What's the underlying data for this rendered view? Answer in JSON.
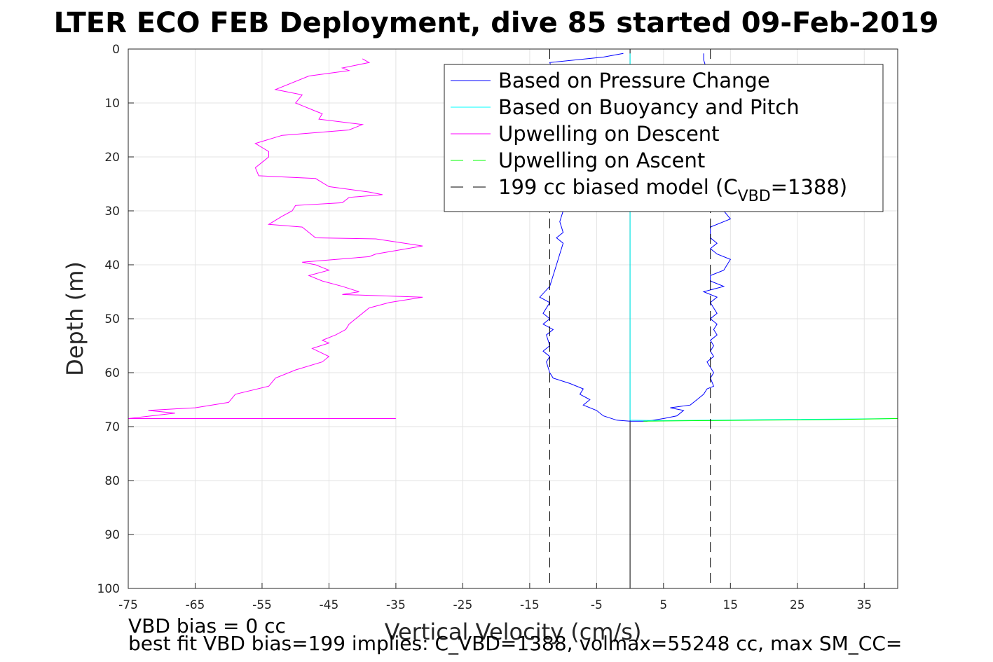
{
  "chart_data": {
    "type": "line",
    "title": "LTER ECO FEB Deployment, dive 85 started 09-Feb-2019",
    "xlabel": "Vertical Velocity (cm/s)",
    "ylabel": "Depth (m)",
    "xlim": [
      -75,
      40
    ],
    "ylim": [
      0,
      100
    ],
    "y_reversed": true,
    "grid": true,
    "x_ticks": [
      -75,
      -65,
      -55,
      -45,
      -35,
      -25,
      -15,
      -5,
      5,
      15,
      25,
      35
    ],
    "y_ticks": [
      0,
      10,
      20,
      30,
      40,
      50,
      60,
      70,
      80,
      90,
      100
    ],
    "legend_position": "top-right",
    "legend": [
      {
        "label": "Based on Pressure Change",
        "color": "#0000ff",
        "dash": "solid"
      },
      {
        "label": "Based on Buoyancy and Pitch",
        "color": "#00ffff",
        "dash": "solid"
      },
      {
        "label": "Upwelling on Descent",
        "color": "#ff00ff",
        "dash": "solid"
      },
      {
        "label": "Upwelling on Ascent",
        "color": "#00ff00",
        "dash": "dashed"
      },
      {
        "label": "199 cc biased model (C",
        "sub": "VBD",
        "tail": "=1388)",
        "color": "#000000",
        "dash": "dashed"
      }
    ],
    "series": [
      {
        "name": "Based on Pressure Change",
        "color": "#0000ff",
        "points": [
          [
            -1,
            0.8
          ],
          [
            -4,
            1.5
          ],
          [
            -12,
            2.5
          ],
          [
            -11.5,
            4
          ],
          [
            -11,
            6
          ],
          [
            -10.5,
            8
          ],
          [
            -11,
            10
          ],
          [
            -10,
            12
          ],
          [
            -10.5,
            14
          ],
          [
            -10,
            16
          ],
          [
            -10.5,
            18
          ],
          [
            -10,
            20
          ],
          [
            -10.5,
            22
          ],
          [
            -10,
            24
          ],
          [
            -10.5,
            26
          ],
          [
            -10,
            28
          ],
          [
            -10,
            30
          ],
          [
            -10.5,
            32
          ],
          [
            -10,
            34
          ],
          [
            -11,
            35
          ],
          [
            -10,
            36
          ],
          [
            -10.5,
            38
          ],
          [
            -11,
            40
          ],
          [
            -11.5,
            42
          ],
          [
            -12,
            44
          ],
          [
            -13.5,
            46
          ],
          [
            -12,
            47
          ],
          [
            -13,
            49
          ],
          [
            -12,
            50
          ],
          [
            -13,
            51
          ],
          [
            -11.5,
            52
          ],
          [
            -12.5,
            53
          ],
          [
            -12,
            55
          ],
          [
            -13,
            56
          ],
          [
            -12,
            57
          ],
          [
            -12.5,
            58
          ],
          [
            -12,
            60
          ],
          [
            -11.5,
            61
          ],
          [
            -9,
            62
          ],
          [
            -7,
            63
          ],
          [
            -7.5,
            64
          ],
          [
            -6,
            65
          ],
          [
            -7,
            66
          ],
          [
            -5,
            67
          ],
          [
            -4,
            68
          ],
          [
            -2,
            68.8
          ],
          [
            0,
            69
          ],
          [
            1,
            69
          ],
          [
            2.5,
            69
          ],
          [
            5,
            68.5
          ],
          [
            7,
            68
          ],
          [
            8,
            67
          ],
          [
            6,
            66.5
          ],
          [
            9,
            66
          ],
          [
            10,
            65
          ],
          [
            11,
            64
          ],
          [
            11.5,
            63
          ],
          [
            12.5,
            62.5
          ],
          [
            12,
            61
          ],
          [
            12.5,
            60
          ],
          [
            11.5,
            58
          ],
          [
            12.5,
            57
          ],
          [
            12,
            56
          ],
          [
            12.5,
            55
          ],
          [
            12,
            54
          ],
          [
            13,
            53
          ],
          [
            12.5,
            52
          ],
          [
            13,
            51
          ],
          [
            12,
            50
          ],
          [
            13,
            49
          ],
          [
            12.5,
            48
          ],
          [
            12,
            47
          ],
          [
            13,
            46
          ],
          [
            11,
            45
          ],
          [
            14,
            44
          ],
          [
            12,
            43
          ],
          [
            12,
            42
          ],
          [
            14,
            41
          ],
          [
            15,
            39
          ],
          [
            13,
            38
          ],
          [
            12,
            37
          ],
          [
            13,
            36
          ],
          [
            12,
            35
          ],
          [
            12,
            34
          ],
          [
            12,
            33
          ],
          [
            15,
            31.5
          ],
          [
            14,
            30
          ],
          [
            13,
            28
          ],
          [
            13.5,
            26
          ],
          [
            12.5,
            24
          ],
          [
            13,
            22
          ],
          [
            12.5,
            20
          ],
          [
            13,
            18
          ],
          [
            12,
            16
          ],
          [
            12.5,
            14
          ],
          [
            12,
            12
          ],
          [
            12.5,
            10
          ],
          [
            12,
            8
          ],
          [
            12,
            6
          ],
          [
            11.5,
            4
          ],
          [
            11,
            2
          ],
          [
            11,
            0.8
          ]
        ]
      },
      {
        "name": "Based on Buoyancy and Pitch",
        "color": "#00ffff",
        "points": [
          [
            0,
            0.8
          ],
          [
            0,
            68.8
          ],
          [
            5,
            68.9
          ],
          [
            20,
            68.7
          ],
          [
            40,
            68.5
          ]
        ]
      },
      {
        "name": "Upwelling on Descent",
        "color": "#ff00ff",
        "points": [
          [
            -40,
            1.8
          ],
          [
            -39,
            2.5
          ],
          [
            -43,
            3.5
          ],
          [
            -42,
            4
          ],
          [
            -48,
            5
          ],
          [
            -53,
            7.5
          ],
          [
            -49,
            8.5
          ],
          [
            -50,
            10
          ],
          [
            -49,
            10.5
          ],
          [
            -47,
            11.5
          ],
          [
            -46,
            12
          ],
          [
            -46.5,
            13
          ],
          [
            -40,
            14
          ],
          [
            -42,
            15
          ],
          [
            -52,
            16
          ],
          [
            -56,
            17.5
          ],
          [
            -54,
            19
          ],
          [
            -54,
            20
          ],
          [
            -55,
            21
          ],
          [
            -56,
            22
          ],
          [
            -55.5,
            23.5
          ],
          [
            -47,
            24
          ],
          [
            -45,
            25.5
          ],
          [
            -39,
            26.5
          ],
          [
            -37,
            27
          ],
          [
            -42,
            27.5
          ],
          [
            -43,
            28.5
          ],
          [
            -50,
            29
          ],
          [
            -50.5,
            30
          ],
          [
            -52,
            31
          ],
          [
            -54,
            32.5
          ],
          [
            -49,
            33
          ],
          [
            -47,
            35
          ],
          [
            -38,
            35.2
          ],
          [
            -31,
            36.5
          ],
          [
            -38,
            38
          ],
          [
            -39,
            38.5
          ],
          [
            -49,
            39.5
          ],
          [
            -47,
            40
          ],
          [
            -45,
            41
          ],
          [
            -48,
            42
          ],
          [
            -46,
            43
          ],
          [
            -43,
            44
          ],
          [
            -40.5,
            45
          ],
          [
            -43,
            45.5
          ],
          [
            -31,
            46
          ],
          [
            -36,
            47
          ],
          [
            -39,
            48
          ],
          [
            -41,
            50
          ],
          [
            -42,
            51
          ],
          [
            -42.5,
            52
          ],
          [
            -44,
            53
          ],
          [
            -46,
            54
          ],
          [
            -45,
            54.5
          ],
          [
            -47.5,
            55.5
          ],
          [
            -45,
            57
          ],
          [
            -46,
            58
          ],
          [
            -50,
            59.5
          ],
          [
            -53,
            61
          ],
          [
            -54,
            62.5
          ],
          [
            -59,
            64
          ],
          [
            -60,
            65.5
          ],
          [
            -65,
            66.5
          ],
          [
            -72,
            67
          ],
          [
            -68,
            67.5
          ],
          [
            -75,
            68.5
          ],
          [
            -35,
            68.5
          ]
        ]
      },
      {
        "name": "Upwelling on Ascent",
        "color": "#00ff00",
        "points": [
          [
            2,
            69
          ],
          [
            10,
            68.9
          ],
          [
            20,
            68.8
          ],
          [
            30,
            68.7
          ],
          [
            40,
            68.5
          ]
        ]
      },
      {
        "name": "199 cc biased model (C_VBD=1388)",
        "color": "#000000",
        "dashed": true,
        "points": [
          [
            -12,
            0
          ],
          [
            -12,
            100
          ]
        ]
      },
      {
        "name": "199 cc biased model (C_VBD=1388)",
        "color": "#000000",
        "dashed": true,
        "points": [
          [
            12,
            0
          ],
          [
            12,
            100
          ]
        ]
      }
    ],
    "zero_line": {
      "x": 0,
      "color": "#000000"
    },
    "annotations": [
      "VBD bias = 0 cc",
      "best fit VBD bias=199 implies: C_VBD=1388, volmax=55248 cc, max SM_CC="
    ]
  },
  "colors": {
    "grid": "#e3e3e3",
    "axis": "#262626"
  }
}
